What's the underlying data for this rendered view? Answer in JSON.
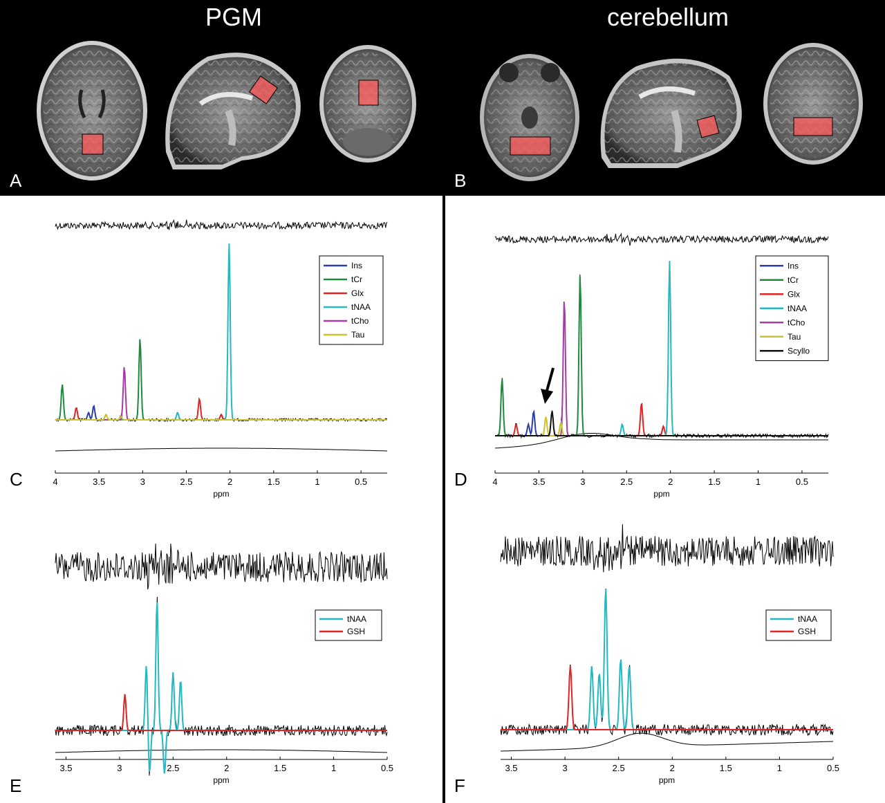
{
  "panels": {
    "A": {
      "letter": "A",
      "title": "PGM"
    },
    "B": {
      "letter": "B",
      "title": "cerebellum"
    },
    "C": {
      "letter": "C"
    },
    "D": {
      "letter": "D"
    },
    "E": {
      "letter": "E"
    },
    "F": {
      "letter": "F"
    }
  },
  "colors": {
    "Ins": "#2b3ea8",
    "tCr": "#1b8a3a",
    "Glx": "#e02424",
    "tNAA": "#22b8c4",
    "tCho": "#a63aa8",
    "Tau": "#c9c22a",
    "Scyllo": "#111111",
    "GSH": "#e02424",
    "data": "#000000"
  },
  "chart_data": [
    {
      "panel": "C",
      "type": "line",
      "xlabel": "ppm",
      "xlim": [
        4.0,
        0.2
      ],
      "xticks": [
        "4",
        "3.5",
        "3",
        "2.5",
        "2",
        "1.5",
        "1",
        "0.5"
      ],
      "xtick_values": [
        4,
        3.5,
        3,
        2.5,
        2,
        1.5,
        1,
        0.5
      ],
      "legend_position": "top-right",
      "series": [
        {
          "name": "Ins",
          "peaks": [
            {
              "ppm": 3.56,
              "height": 0.08
            },
            {
              "ppm": 3.62,
              "height": 0.04
            }
          ]
        },
        {
          "name": "tCr",
          "peaks": [
            {
              "ppm": 3.92,
              "height": 0.2
            },
            {
              "ppm": 3.03,
              "height": 0.46
            }
          ]
        },
        {
          "name": "Glx",
          "peaks": [
            {
              "ppm": 3.76,
              "height": 0.07
            },
            {
              "ppm": 2.35,
              "height": 0.12
            },
            {
              "ppm": 2.1,
              "height": 0.03
            }
          ]
        },
        {
          "name": "tNAA",
          "peaks": [
            {
              "ppm": 2.01,
              "height": 1.0
            },
            {
              "ppm": 2.6,
              "height": 0.04
            }
          ]
        },
        {
          "name": "tCho",
          "peaks": [
            {
              "ppm": 3.21,
              "height": 0.3
            }
          ]
        },
        {
          "name": "Tau",
          "peaks": [
            {
              "ppm": 3.42,
              "height": 0.03
            },
            {
              "ppm": 3.25,
              "height": 0.02
            }
          ]
        }
      ]
    },
    {
      "panel": "D",
      "type": "line",
      "xlabel": "ppm",
      "xlim": [
        4.0,
        0.2
      ],
      "xticks": [
        "4",
        "3.5",
        "3",
        "2.5",
        "2",
        "1.5",
        "1",
        "0.5"
      ],
      "xtick_values": [
        4,
        3.5,
        3,
        2.5,
        2,
        1.5,
        1,
        0.5
      ],
      "legend_position": "top-right",
      "series": [
        {
          "name": "Ins",
          "peaks": [
            {
              "ppm": 3.56,
              "height": 0.13
            },
            {
              "ppm": 3.62,
              "height": 0.06
            }
          ]
        },
        {
          "name": "tCr",
          "peaks": [
            {
              "ppm": 3.92,
              "height": 0.3
            },
            {
              "ppm": 3.03,
              "height": 0.85
            }
          ]
        },
        {
          "name": "Glx",
          "peaks": [
            {
              "ppm": 3.76,
              "height": 0.06
            },
            {
              "ppm": 2.33,
              "height": 0.17
            },
            {
              "ppm": 2.08,
              "height": 0.05
            }
          ]
        },
        {
          "name": "tNAA",
          "peaks": [
            {
              "ppm": 2.01,
              "height": 0.92
            },
            {
              "ppm": 2.55,
              "height": 0.06
            }
          ]
        },
        {
          "name": "tCho",
          "peaks": [
            {
              "ppm": 3.21,
              "height": 0.72
            }
          ]
        },
        {
          "name": "Tau",
          "peaks": [
            {
              "ppm": 3.42,
              "height": 0.1
            },
            {
              "ppm": 3.25,
              "height": 0.07
            }
          ]
        },
        {
          "name": "Scyllo",
          "peaks": [
            {
              "ppm": 3.35,
              "height": 0.13
            }
          ]
        }
      ],
      "annotations": [
        {
          "type": "arrow",
          "ppm": 3.4
        }
      ]
    },
    {
      "panel": "E",
      "type": "line",
      "xlabel": "ppm",
      "xlim": [
        3.6,
        0.5
      ],
      "xticks": [
        "3.5",
        "3",
        "2.5",
        "2",
        "1.5",
        "1",
        "0.5"
      ],
      "xtick_values": [
        3.5,
        3,
        2.5,
        2,
        1.5,
        1,
        0.5
      ],
      "legend_position": "top-right",
      "series": [
        {
          "name": "tNAA",
          "peaks": [
            {
              "ppm": 2.65,
              "height": 0.9
            },
            {
              "ppm": 2.72,
              "height": -0.3
            },
            {
              "ppm": 2.58,
              "height": -0.3
            },
            {
              "ppm": 2.75,
              "height": 0.45
            },
            {
              "ppm": 2.5,
              "height": 0.4
            },
            {
              "ppm": 2.43,
              "height": 0.35
            }
          ]
        },
        {
          "name": "GSH",
          "peaks": [
            {
              "ppm": 2.95,
              "height": 0.25
            }
          ]
        }
      ]
    },
    {
      "panel": "F",
      "type": "line",
      "xlabel": "ppm",
      "xlim": [
        3.6,
        0.5
      ],
      "xticks": [
        "3.5",
        "3",
        "2.5",
        "2",
        "1.5",
        "1",
        "0.5"
      ],
      "xtick_values": [
        3.5,
        3,
        2.5,
        2,
        1.5,
        1,
        0.5
      ],
      "legend_position": "top-right",
      "series": [
        {
          "name": "tNAA",
          "peaks": [
            {
              "ppm": 2.62,
              "height": 1.0
            },
            {
              "ppm": 2.75,
              "height": 0.45
            },
            {
              "ppm": 2.48,
              "height": 0.5
            },
            {
              "ppm": 2.4,
              "height": 0.45
            },
            {
              "ppm": 2.68,
              "height": 0.4
            }
          ]
        },
        {
          "name": "GSH",
          "peaks": [
            {
              "ppm": 2.95,
              "height": 0.45
            }
          ]
        }
      ]
    }
  ]
}
